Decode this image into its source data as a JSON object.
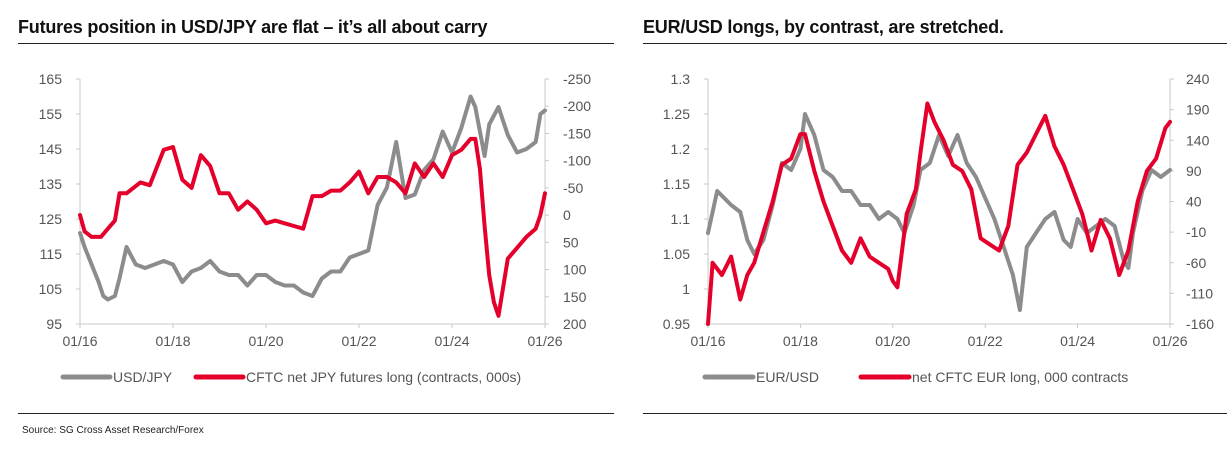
{
  "source": "Source: SG Cross Asset Research/Forex",
  "colors": {
    "grey": "#8c8c8c",
    "red": "#e4002b",
    "axis": "#c8c8c8",
    "text": "#555555"
  },
  "chart_data": [
    {
      "type": "line",
      "title": "Futures position in USD/JPY are flat – it’s all about carry",
      "x_tick_labels": [
        "01/16",
        "01/18",
        "01/20",
        "01/22",
        "01/24",
        "01/26"
      ],
      "x_range": [
        2016.0,
        2026.0
      ],
      "left_axis": {
        "ticks": [
          165,
          155,
          145,
          135,
          125,
          115,
          105,
          95
        ],
        "range": [
          95,
          165
        ]
      },
      "right_axis": {
        "ticks": [
          "-250",
          "-200",
          "-150",
          "-100",
          "-50",
          "0",
          "50",
          "100",
          "150",
          "200"
        ],
        "range": [
          -250,
          200
        ],
        "inverted": true
      },
      "series": [
        {
          "name": "USD/JPY",
          "axis": "left",
          "color": "#8c8c8c",
          "x": [
            2016.0,
            2016.1,
            2016.25,
            2016.4,
            2016.5,
            2016.6,
            2016.75,
            2016.85,
            2017.0,
            2017.2,
            2017.4,
            2017.6,
            2017.8,
            2018.0,
            2018.2,
            2018.4,
            2018.6,
            2018.8,
            2019.0,
            2019.2,
            2019.4,
            2019.6,
            2019.8,
            2020.0,
            2020.2,
            2020.4,
            2020.6,
            2020.8,
            2021.0,
            2021.2,
            2021.4,
            2021.6,
            2021.8,
            2022.0,
            2022.2,
            2022.4,
            2022.6,
            2022.8,
            2023.0,
            2023.2,
            2023.4,
            2023.6,
            2023.8,
            2024.0,
            2024.2,
            2024.4,
            2024.5,
            2024.6,
            2024.7,
            2024.8,
            2025.0,
            2025.2,
            2025.4,
            2025.6,
            2025.8,
            2025.9,
            2026.0
          ],
          "y": [
            121,
            117,
            112,
            107,
            103,
            102,
            103,
            108,
            117,
            112,
            111,
            112,
            113,
            112,
            107,
            110,
            111,
            113,
            110,
            109,
            109,
            106,
            109,
            109,
            107,
            106,
            106,
            104,
            103,
            108,
            110,
            110,
            114,
            115,
            116,
            129,
            134,
            147,
            131,
            132,
            139,
            142,
            150,
            144,
            151,
            160,
            157,
            150,
            143,
            152,
            157,
            149,
            144,
            145,
            147,
            155,
            156
          ]
        },
        {
          "name": "CFTC net JPY futures long (contracts, 000s)",
          "axis": "right",
          "color": "#e4002b",
          "x": [
            2016.0,
            2016.1,
            2016.25,
            2016.45,
            2016.6,
            2016.75,
            2016.85,
            2017.0,
            2017.3,
            2017.5,
            2017.8,
            2018.0,
            2018.2,
            2018.4,
            2018.6,
            2018.8,
            2019.0,
            2019.2,
            2019.4,
            2019.6,
            2019.8,
            2020.0,
            2020.2,
            2020.4,
            2020.6,
            2020.8,
            2021.0,
            2021.2,
            2021.4,
            2021.6,
            2021.8,
            2022.0,
            2022.2,
            2022.4,
            2022.6,
            2022.8,
            2023.0,
            2023.2,
            2023.4,
            2023.6,
            2023.8,
            2024.0,
            2024.2,
            2024.4,
            2024.5,
            2024.6,
            2024.7,
            2024.8,
            2024.9,
            2025.0,
            2025.2,
            2025.4,
            2025.6,
            2025.8,
            2025.9,
            2026.0
          ],
          "y": [
            0,
            30,
            40,
            40,
            25,
            10,
            -40,
            -40,
            -60,
            -55,
            -120,
            -125,
            -65,
            -50,
            -110,
            -90,
            -40,
            -40,
            -10,
            -25,
            -10,
            15,
            10,
            15,
            20,
            25,
            -35,
            -35,
            -45,
            -45,
            -60,
            -80,
            -40,
            -70,
            -70,
            -60,
            -40,
            -95,
            -70,
            -95,
            -70,
            -110,
            -120,
            -140,
            -140,
            -85,
            20,
            110,
            160,
            185,
            80,
            60,
            40,
            25,
            0,
            -40
          ]
        }
      ],
      "legend": {
        "placement": "bottom",
        "items": [
          "USD/JPY",
          "CFTC net JPY futures long (contracts, 000s)"
        ]
      }
    },
    {
      "type": "line",
      "title": "EUR/USD longs, by contrast, are stretched.",
      "x_tick_labels": [
        "01/16",
        "01/18",
        "01/20",
        "01/22",
        "01/24",
        "01/26"
      ],
      "x_range": [
        2016.0,
        2026.0
      ],
      "left_axis": {
        "ticks": [
          "1.3",
          "1.25",
          "1.2",
          "1.15",
          "1.1",
          "1.05",
          "1",
          "0.95"
        ],
        "range": [
          0.95,
          1.3
        ]
      },
      "right_axis": {
        "ticks": [
          240,
          190,
          140,
          90,
          40,
          -10,
          -60,
          -110,
          -160
        ],
        "range": [
          -160,
          240
        ]
      },
      "series": [
        {
          "name": "EUR/USD",
          "axis": "left",
          "color": "#8c8c8c",
          "x": [
            2016.0,
            2016.2,
            2016.35,
            2016.5,
            2016.7,
            2016.85,
            2017.0,
            2017.2,
            2017.4,
            2017.6,
            2017.8,
            2018.0,
            2018.1,
            2018.3,
            2018.5,
            2018.7,
            2018.9,
            2019.1,
            2019.3,
            2019.5,
            2019.7,
            2019.9,
            2020.1,
            2020.25,
            2020.45,
            2020.6,
            2020.8,
            2021.0,
            2021.2,
            2021.4,
            2021.6,
            2021.8,
            2022.0,
            2022.2,
            2022.4,
            2022.6,
            2022.75,
            2022.9,
            2023.1,
            2023.3,
            2023.5,
            2023.7,
            2023.85,
            2024.0,
            2024.2,
            2024.4,
            2024.6,
            2024.8,
            2025.0,
            2025.1,
            2025.2,
            2025.4,
            2025.6,
            2025.8,
            2026.0
          ],
          "y": [
            1.08,
            1.14,
            1.13,
            1.12,
            1.11,
            1.07,
            1.05,
            1.07,
            1.12,
            1.18,
            1.17,
            1.2,
            1.25,
            1.22,
            1.17,
            1.16,
            1.14,
            1.14,
            1.12,
            1.12,
            1.1,
            1.11,
            1.1,
            1.08,
            1.12,
            1.17,
            1.18,
            1.22,
            1.19,
            1.22,
            1.18,
            1.16,
            1.13,
            1.1,
            1.06,
            1.02,
            0.97,
            1.06,
            1.08,
            1.1,
            1.11,
            1.07,
            1.06,
            1.1,
            1.08,
            1.09,
            1.1,
            1.09,
            1.04,
            1.03,
            1.08,
            1.14,
            1.17,
            1.16,
            1.17
          ]
        },
        {
          "name": "net CFTC EUR long, 000 contracts",
          "axis": "right",
          "color": "#e4002b",
          "x": [
            2016.0,
            2016.1,
            2016.3,
            2016.5,
            2016.7,
            2016.85,
            2017.0,
            2017.2,
            2017.4,
            2017.6,
            2017.8,
            2018.0,
            2018.1,
            2018.3,
            2018.5,
            2018.7,
            2018.9,
            2019.1,
            2019.3,
            2019.5,
            2019.7,
            2019.9,
            2020.0,
            2020.1,
            2020.3,
            2020.5,
            2020.6,
            2020.75,
            2020.9,
            2021.1,
            2021.3,
            2021.5,
            2021.7,
            2021.9,
            2022.1,
            2022.3,
            2022.5,
            2022.7,
            2022.9,
            2023.1,
            2023.3,
            2023.5,
            2023.7,
            2023.9,
            2024.1,
            2024.3,
            2024.5,
            2024.7,
            2024.9,
            2025.1,
            2025.3,
            2025.5,
            2025.7,
            2025.9,
            2026.0
          ],
          "y": [
            -160,
            -60,
            -80,
            -50,
            -120,
            -80,
            -60,
            -10,
            40,
            100,
            110,
            150,
            150,
            90,
            40,
            0,
            -40,
            -60,
            -20,
            -50,
            -60,
            -70,
            -90,
            -100,
            20,
            60,
            120,
            200,
            170,
            140,
            100,
            90,
            60,
            -20,
            -30,
            -40,
            0,
            100,
            120,
            150,
            180,
            130,
            100,
            60,
            20,
            -40,
            10,
            -20,
            -80,
            -40,
            40,
            90,
            110,
            160,
            170
          ]
        }
      ],
      "legend": {
        "placement": "bottom",
        "items": [
          "EUR/USD",
          "net CFTC EUR long, 000 contracts"
        ]
      }
    }
  ]
}
